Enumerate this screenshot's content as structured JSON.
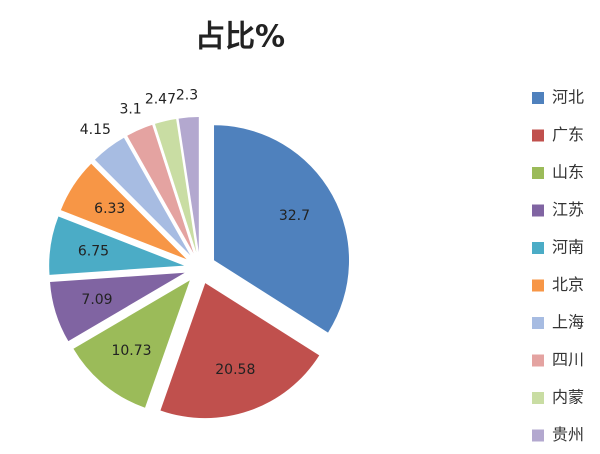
{
  "chart_data": {
    "type": "pie",
    "title": "占比%",
    "categories": [
      "河北",
      "广东",
      "山东",
      "江苏",
      "河南",
      "北京",
      "上海",
      "四川",
      "内蒙",
      "贵州"
    ],
    "values": [
      32.7,
      20.58,
      10.73,
      7.09,
      6.75,
      6.33,
      4.15,
      3.1,
      2.47,
      2.3
    ],
    "colors": [
      "#4f81bd",
      "#c0504d",
      "#9bbb59",
      "#8064a2",
      "#4bacc6",
      "#f79646",
      "#a7bce2",
      "#e4a3a1",
      "#c9dda3",
      "#b3a8cf"
    ],
    "legend": "right"
  }
}
